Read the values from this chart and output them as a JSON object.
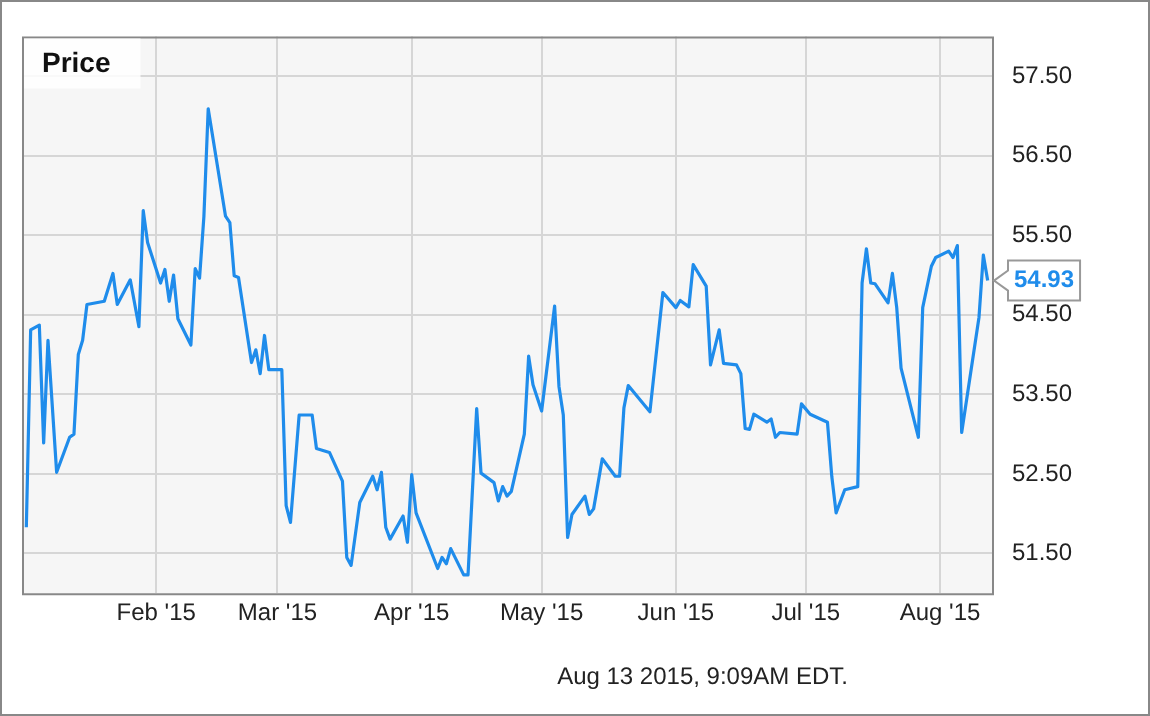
{
  "chart_data": {
    "type": "line",
    "title": "Price",
    "annotations": [
      "Aug 13 2015, 9:09AM EDT."
    ],
    "x": [
      "2015-01-02",
      "2015-01-03",
      "2015-01-05",
      "2015-01-06",
      "2015-01-07",
      "2015-01-09",
      "2015-01-12",
      "2015-01-13",
      "2015-01-14",
      "2015-01-15",
      "2015-01-16",
      "2015-01-20",
      "2015-01-22",
      "2015-01-23",
      "2015-01-26",
      "2015-01-28",
      "2015-01-29",
      "2015-01-30",
      "2015-02-02",
      "2015-02-03",
      "2015-02-04",
      "2015-02-05",
      "2015-02-06",
      "2015-02-09",
      "2015-02-10",
      "2015-02-11",
      "2015-02-12",
      "2015-02-13",
      "2015-02-17",
      "2015-02-18",
      "2015-02-19",
      "2015-02-20",
      "2015-02-23",
      "2015-02-24",
      "2015-02-25",
      "2015-02-26",
      "2015-02-27",
      "2015-03-02",
      "2015-03-03",
      "2015-03-04",
      "2015-03-06",
      "2015-03-09",
      "2015-03-10",
      "2015-03-13",
      "2015-03-16",
      "2015-03-17",
      "2015-03-18",
      "2015-03-20",
      "2015-03-23",
      "2015-03-24",
      "2015-03-25",
      "2015-03-26",
      "2015-03-27",
      "2015-03-30",
      "2015-03-31",
      "2015-04-01",
      "2015-04-02",
      "2015-04-07",
      "2015-04-08",
      "2015-04-09",
      "2015-04-10",
      "2015-04-13",
      "2015-04-14",
      "2015-04-16",
      "2015-04-17",
      "2015-04-20",
      "2015-04-21",
      "2015-04-22",
      "2015-04-23",
      "2015-04-24",
      "2015-04-27",
      "2015-04-28",
      "2015-04-29",
      "2015-05-01",
      "2015-05-04",
      "2015-05-05",
      "2015-05-06",
      "2015-05-07",
      "2015-05-08",
      "2015-05-11",
      "2015-05-12",
      "2015-05-13",
      "2015-05-15",
      "2015-05-18",
      "2015-05-19",
      "2015-05-20",
      "2015-05-21",
      "2015-05-26",
      "2015-05-29",
      "2015-06-01",
      "2015-06-02",
      "2015-06-04",
      "2015-06-05",
      "2015-06-08",
      "2015-06-09",
      "2015-06-11",
      "2015-06-12",
      "2015-06-15",
      "2015-06-16",
      "2015-06-17",
      "2015-06-18",
      "2015-06-19",
      "2015-06-22",
      "2015-06-23",
      "2015-06-24",
      "2015-06-25",
      "2015-06-29",
      "2015-06-30",
      "2015-07-02",
      "2015-07-06",
      "2015-07-07",
      "2015-07-08",
      "2015-07-10",
      "2015-07-13",
      "2015-07-14",
      "2015-07-15",
      "2015-07-16",
      "2015-07-17",
      "2015-07-20",
      "2015-07-21",
      "2015-07-22",
      "2015-07-23",
      "2015-07-27",
      "2015-07-28",
      "2015-07-30",
      "2015-07-31",
      "2015-08-03",
      "2015-08-04",
      "2015-08-05",
      "2015-08-06",
      "2015-08-10",
      "2015-08-11",
      "2015-08-12"
    ],
    "series": [
      {
        "color": "#1f8ceb",
        "values": [
          51.83,
          54.31,
          54.37,
          52.89,
          54.18,
          52.52,
          52.96,
          53.0,
          54.0,
          54.18,
          54.63,
          54.67,
          55.02,
          54.63,
          54.94,
          54.35,
          55.81,
          55.41,
          54.9,
          55.07,
          54.67,
          55.0,
          54.45,
          54.12,
          55.08,
          54.96,
          55.73,
          57.09,
          55.74,
          55.66,
          54.99,
          54.97,
          53.9,
          54.06,
          53.76,
          54.24,
          53.81,
          53.81,
          52.1,
          51.89,
          53.24,
          53.24,
          52.82,
          52.77,
          52.41,
          51.45,
          51.35,
          52.14,
          52.47,
          52.3,
          52.52,
          51.83,
          51.68,
          51.97,
          51.64,
          52.49,
          52.01,
          51.31,
          51.45,
          51.37,
          51.56,
          51.23,
          51.23,
          53.32,
          52.51,
          52.39,
          52.16,
          52.34,
          52.22,
          52.28,
          53.0,
          53.98,
          53.62,
          53.29,
          54.61,
          53.6,
          53.24,
          51.7,
          51.99,
          52.22,
          51.99,
          52.06,
          52.69,
          52.47,
          52.47,
          53.33,
          53.61,
          53.28,
          54.78,
          54.59,
          54.68,
          54.6,
          55.13,
          54.86,
          53.87,
          54.31,
          53.89,
          53.87,
          53.76,
          53.07,
          53.06,
          53.25,
          53.15,
          53.19,
          52.96,
          53.02,
          53.0,
          53.38,
          53.25,
          53.15,
          52.47,
          52.01,
          52.3,
          52.34,
          54.9,
          55.33,
          54.9,
          54.89,
          54.65,
          55.02,
          54.59,
          53.83,
          52.96,
          54.59,
          55.11,
          55.22,
          55.3,
          55.22,
          55.37,
          53.02,
          54.47,
          55.25,
          54.93
        ],
        "value_labels": [
          null,
          null,
          null,
          null,
          null,
          null,
          null,
          null,
          null,
          null,
          null,
          null,
          null,
          null,
          null,
          null,
          null,
          null,
          null,
          null,
          null,
          null,
          null,
          null,
          null,
          null,
          null,
          null,
          null,
          null,
          null,
          null,
          null,
          null,
          null,
          null,
          null,
          null,
          null,
          null,
          null,
          null,
          null,
          null,
          null,
          null,
          null,
          null,
          null,
          null,
          null,
          null,
          null,
          null,
          null,
          null,
          null,
          null,
          null,
          null,
          null,
          null,
          null,
          null,
          null,
          null,
          null,
          null,
          null,
          null,
          null,
          null,
          null,
          null,
          null,
          null,
          null,
          null,
          null,
          null,
          null,
          null,
          null,
          null,
          null,
          null,
          null,
          null,
          null,
          null,
          null,
          null,
          null,
          null,
          null,
          null,
          null,
          null,
          null,
          null,
          null,
          null,
          null,
          null,
          null,
          null,
          null,
          null,
          null,
          null,
          null,
          null,
          null,
          null,
          null,
          null,
          null,
          null,
          null,
          null,
          null,
          null,
          null,
          null,
          null,
          null,
          null,
          null,
          null,
          null,
          null,
          null,
          "54.93"
        ]
      }
    ],
    "xlim": [
      "2015-01-01",
      "2015-08-13"
    ],
    "xticks": [
      {
        "value": "2015-02-01",
        "label": "Feb '15"
      },
      {
        "value": "2015-03-01",
        "label": "Mar '15"
      },
      {
        "value": "2015-04-01",
        "label": "Apr '15"
      },
      {
        "value": "2015-05-01",
        "label": "May '15"
      },
      {
        "value": "2015-06-01",
        "label": "Jun '15"
      },
      {
        "value": "2015-07-01",
        "label": "Jul '15"
      },
      {
        "value": "2015-08-01",
        "label": "Aug '15"
      }
    ],
    "ylim": [
      51,
      58
    ],
    "yticks": [
      {
        "value": 51.5,
        "label": "51.50"
      },
      {
        "value": 52.5,
        "label": "52.50"
      },
      {
        "value": 53.5,
        "label": "53.50"
      },
      {
        "value": 54.5,
        "label": "54.50"
      },
      {
        "value": 55.5,
        "label": "55.50"
      },
      {
        "value": 56.5,
        "label": "56.50"
      },
      {
        "value": 57.5,
        "label": "57.50"
      }
    ],
    "grid": true,
    "legend": false,
    "marker": "none",
    "line_style": "solid"
  }
}
